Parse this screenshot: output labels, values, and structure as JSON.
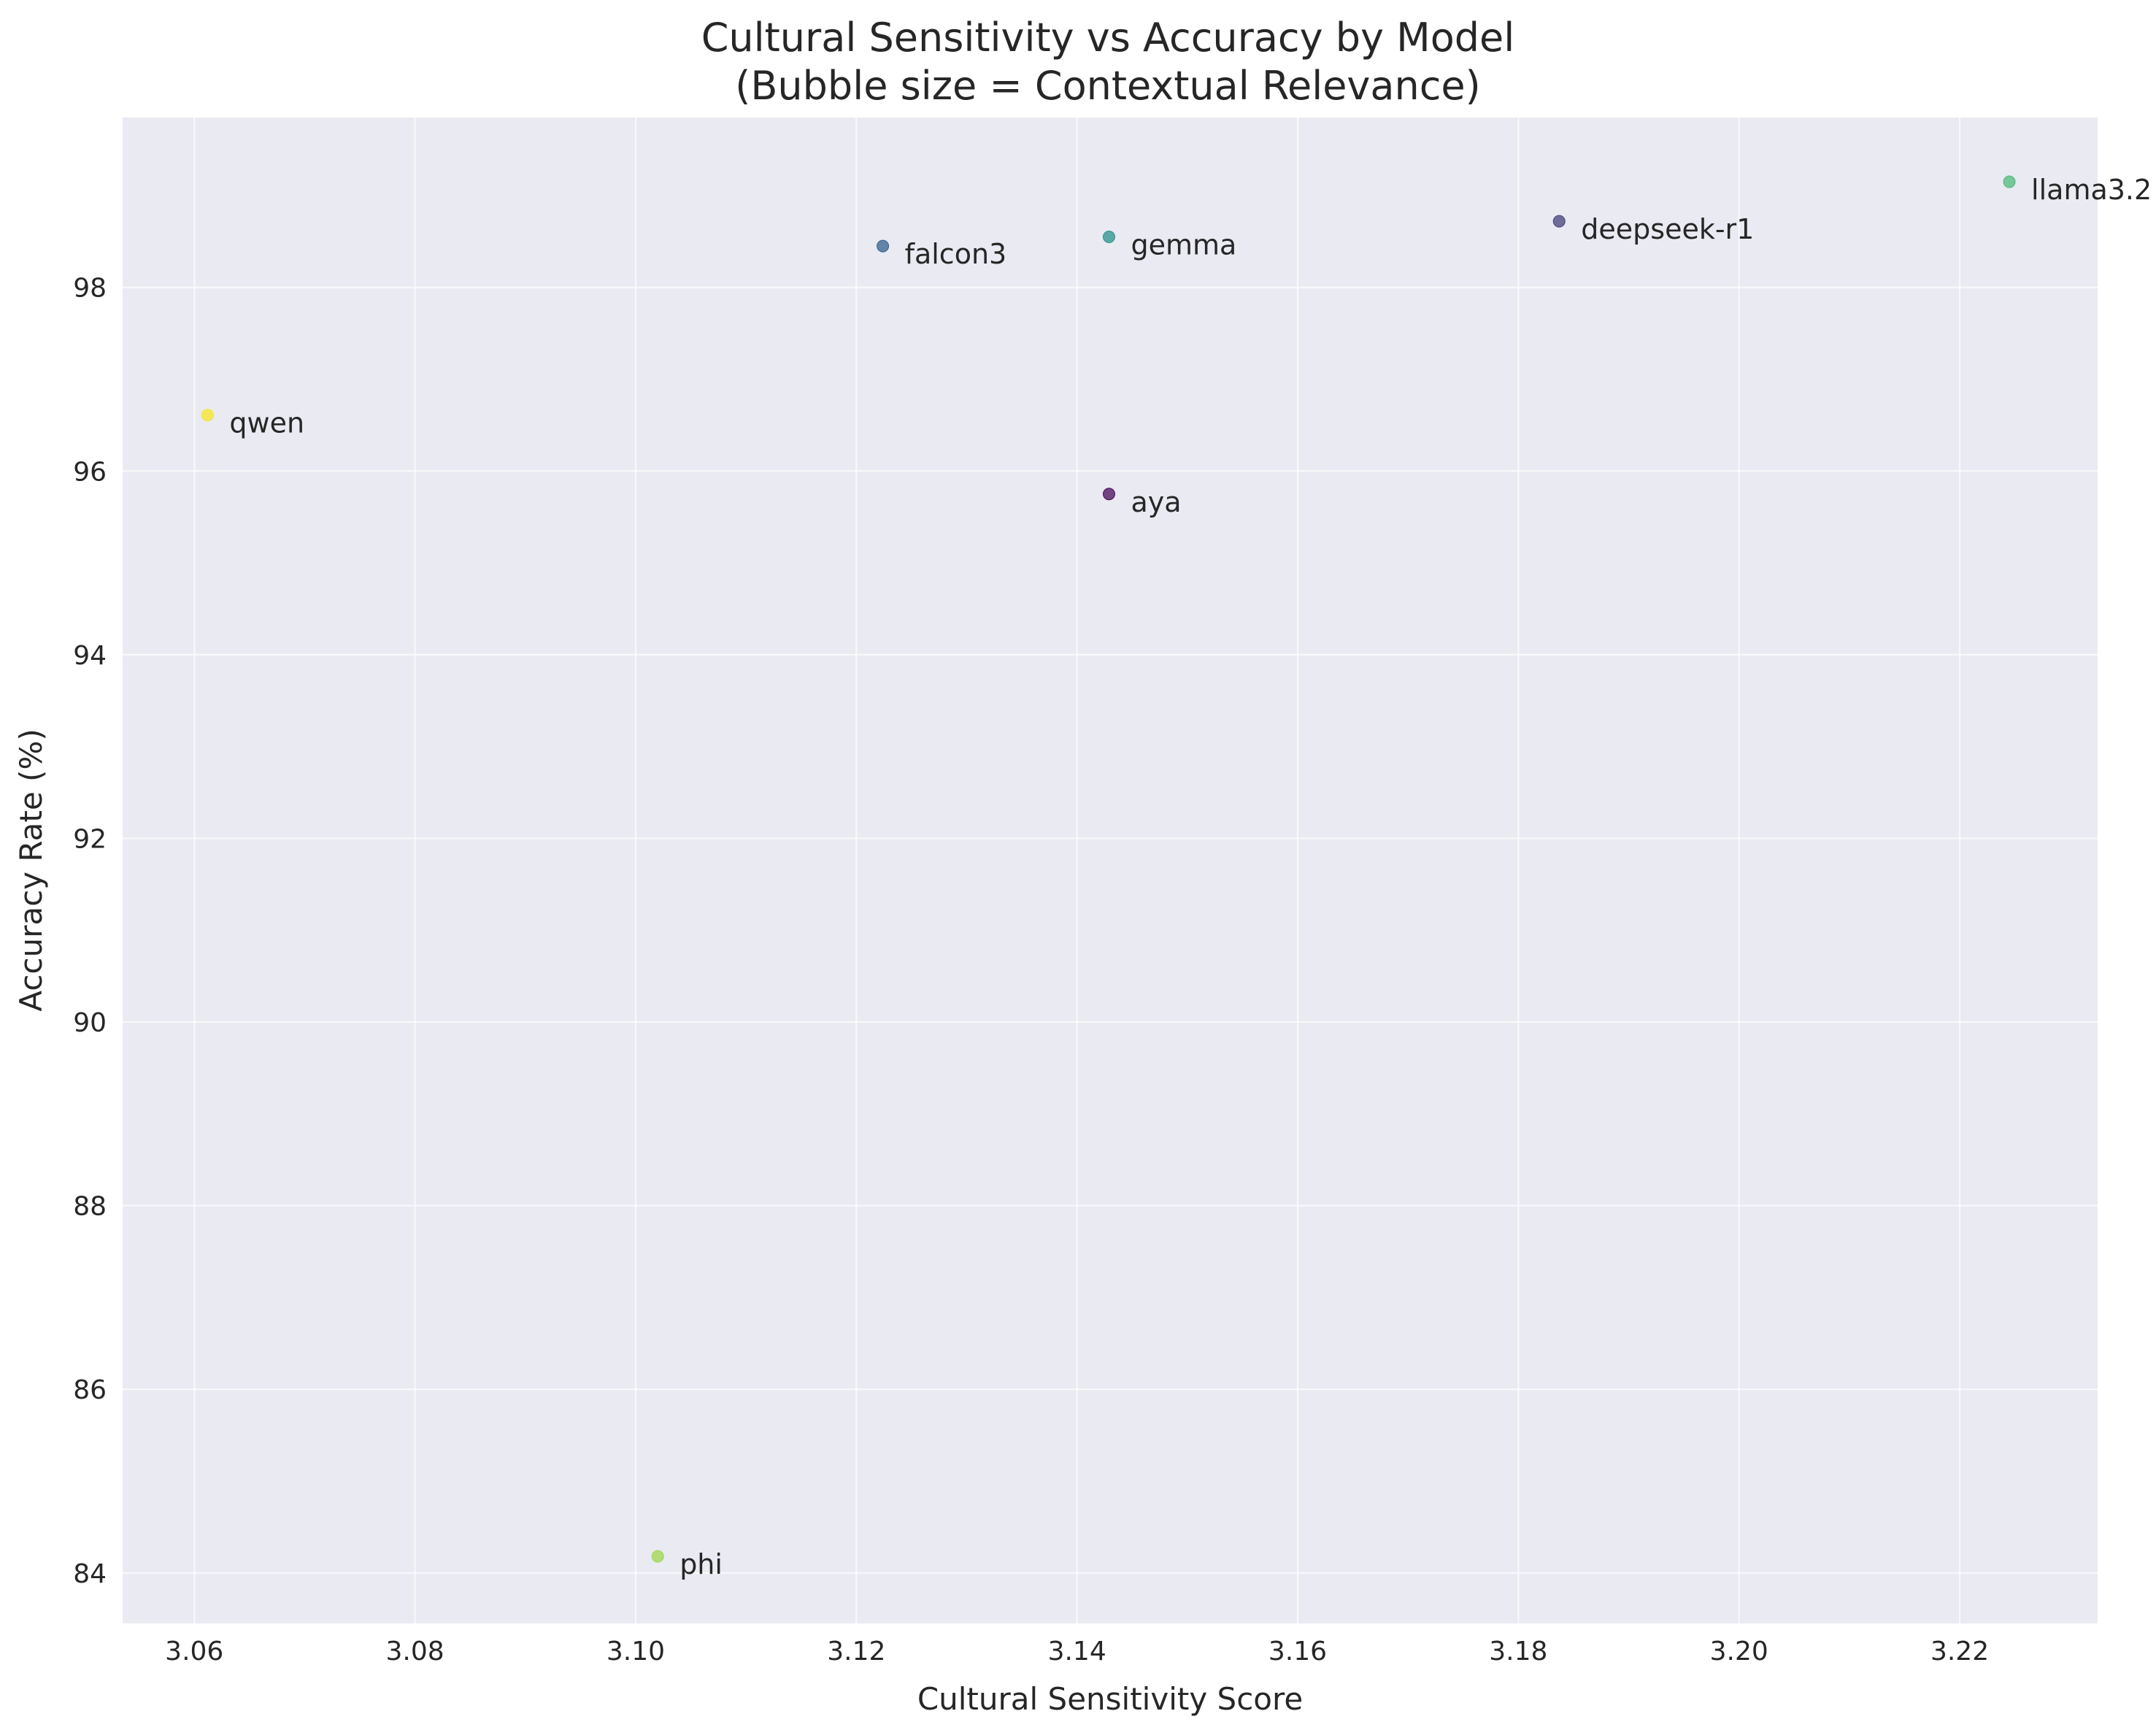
{
  "chart_data": {
    "type": "scatter",
    "title": "Cultural Sensitivity vs Accuracy by Model",
    "subtitle": "(Bubble size = Contextual Relevance)",
    "xlabel": "Cultural Sensitivity Score",
    "ylabel": "Accuracy Rate (%)",
    "xlim": [
      3.0535,
      3.2325
    ],
    "ylim": [
      83.45,
      99.85
    ],
    "xticks": [
      "3.06",
      "3.08",
      "3.10",
      "3.12",
      "3.14",
      "3.16",
      "3.18",
      "3.20",
      "3.22"
    ],
    "yticks": [
      "84",
      "86",
      "88",
      "90",
      "92",
      "94",
      "96",
      "98"
    ],
    "xtick_values": [
      3.06,
      3.08,
      3.1,
      3.12,
      3.14,
      3.16,
      3.18,
      3.2,
      3.22
    ],
    "ytick_values": [
      84,
      86,
      88,
      90,
      92,
      94,
      96,
      98
    ],
    "grid": true,
    "background_color": "#eaeaf2",
    "points": [
      {
        "label": "llama3.2",
        "x": 3.2245,
        "y": 99.15,
        "color": "#4fbb7c"
      },
      {
        "label": "deepseek-r1",
        "x": 3.1837,
        "y": 98.72,
        "color": "#45417e"
      },
      {
        "label": "gemma",
        "x": 3.1429,
        "y": 98.55,
        "color": "#2a928c"
      },
      {
        "label": "falcon3",
        "x": 3.1224,
        "y": 98.45,
        "color": "#34628e"
      },
      {
        "label": "qwen",
        "x": 3.0612,
        "y": 96.61,
        "color": "#f5e626"
      },
      {
        "label": "aya",
        "x": 3.1429,
        "y": 95.75,
        "color": "#4a0c5c"
      },
      {
        "label": "phi",
        "x": 3.102,
        "y": 84.18,
        "color": "#a0d64e"
      }
    ]
  }
}
